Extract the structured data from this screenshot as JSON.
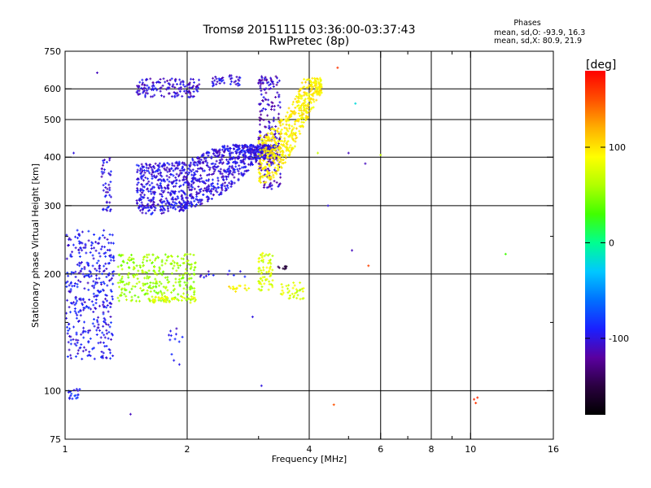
{
  "chart_data": {
    "type": "scatter",
    "title": "Tromsø 20151115 03:36:00-03:37:43",
    "subtitle": "RwPretec (8p)",
    "xlabel": "Frequency [MHz]",
    "ylabel": "Stationary phase Virtual Height [km]",
    "x_scale": "log",
    "y_scale": "log",
    "xlim": [
      1,
      16
    ],
    "ylim": [
      75,
      750
    ],
    "x_ticks": [
      1,
      2,
      4,
      6,
      8,
      10,
      16
    ],
    "x_tick_labels": [
      "1",
      "2",
      "4",
      "6",
      "8",
      "10",
      "16"
    ],
    "x_minor_ticks": [
      3,
      5,
      7,
      9
    ],
    "y_ticks": [
      75,
      100,
      200,
      300,
      400,
      500,
      600,
      750
    ],
    "y_tick_labels": [
      "75",
      "100",
      "200",
      "300",
      "400",
      "500",
      "600",
      "750"
    ],
    "y_minor_ticks": [
      150,
      250
    ],
    "grid": true,
    "stats": {
      "heading": "Phases",
      "line_o": "mean, sd,O: -93.9, 16.3",
      "line_x": "mean, sd,X: 80.9, 21.9"
    },
    "colorbar": {
      "label": "[deg]",
      "range": [
        -180,
        180
      ],
      "ticks": [
        100,
        0,
        -100
      ],
      "tick_labels": [
        "100",
        "0",
        "-100"
      ],
      "colormap": [
        "#000000",
        "#2a0040",
        "#5a00a0",
        "#1a20ff",
        "#0070ff",
        "#00c8ff",
        "#00ff90",
        "#40ff00",
        "#b0ff00",
        "#ffff00",
        "#ffb000",
        "#ff5000",
        "#ff0000"
      ]
    },
    "clusters": [
      {
        "f1": 1.0,
        "f2": 1.32,
        "h1": 120,
        "h2": 260,
        "ph": -95,
        "n": 380,
        "shape": "box"
      },
      {
        "f1": 1.02,
        "f2": 1.09,
        "h1": 95,
        "h2": 103,
        "ph": -90,
        "n": 18,
        "shape": "box"
      },
      {
        "f1": 1.23,
        "f2": 1.3,
        "h1": 290,
        "h2": 400,
        "ph": -100,
        "n": 45,
        "shape": "box"
      },
      {
        "f1": 1.5,
        "f2": 3.3,
        "h1": 285,
        "h2": 430,
        "ph": -100,
        "n": 1100,
        "shape": "o_trace"
      },
      {
        "f1": 1.5,
        "f2": 2.15,
        "h1": 570,
        "h2": 640,
        "ph": -105,
        "n": 140,
        "shape": "box"
      },
      {
        "f1": 2.3,
        "f2": 2.7,
        "h1": 610,
        "h2": 650,
        "ph": -100,
        "n": 40,
        "shape": "box"
      },
      {
        "f1": 3.0,
        "f2": 3.4,
        "h1": 330,
        "h2": 650,
        "ph": -110,
        "n": 220,
        "shape": "box"
      },
      {
        "f1": 3.0,
        "f2": 4.3,
        "h1": 340,
        "h2": 640,
        "ph": 95,
        "n": 520,
        "shape": "x_trace"
      },
      {
        "f1": 1.35,
        "f2": 2.1,
        "h1": 170,
        "h2": 225,
        "ph": 55,
        "n": 300,
        "shape": "box"
      },
      {
        "f1": 1.6,
        "f2": 2.1,
        "h1": 168,
        "h2": 175,
        "ph": 80,
        "n": 40,
        "shape": "box"
      },
      {
        "f1": 2.5,
        "f2": 2.85,
        "h1": 180,
        "h2": 188,
        "ph": 95,
        "n": 16,
        "shape": "box"
      },
      {
        "f1": 3.0,
        "f2": 3.25,
        "h1": 180,
        "h2": 228,
        "ph": 75,
        "n": 70,
        "shape": "box"
      },
      {
        "f1": 3.4,
        "f2": 3.9,
        "h1": 172,
        "h2": 190,
        "ph": 75,
        "n": 35,
        "shape": "box"
      },
      {
        "f1": 1.8,
        "f2": 1.95,
        "h1": 115,
        "h2": 150,
        "ph": -95,
        "n": 12,
        "shape": "box"
      },
      {
        "f1": 2.15,
        "f2": 2.8,
        "h1": 195,
        "h2": 205,
        "ph": -100,
        "n": 12,
        "shape": "box"
      },
      {
        "f1": 3.35,
        "f2": 3.55,
        "h1": 205,
        "h2": 210,
        "ph": -150,
        "n": 8,
        "shape": "box"
      }
    ],
    "points": [
      {
        "f": 1.2,
        "h": 660,
        "ph": -110
      },
      {
        "f": 4.7,
        "h": 680,
        "ph": 160
      },
      {
        "f": 5.2,
        "h": 550,
        "ph": -20
      },
      {
        "f": 5.0,
        "h": 410,
        "ph": -110
      },
      {
        "f": 5.5,
        "h": 385,
        "ph": -110
      },
      {
        "f": 5.1,
        "h": 230,
        "ph": -110
      },
      {
        "f": 4.45,
        "h": 300,
        "ph": -100
      },
      {
        "f": 5.6,
        "h": 210,
        "ph": 155
      },
      {
        "f": 6.0,
        "h": 405,
        "ph": 70
      },
      {
        "f": 12.2,
        "h": 225,
        "ph": 30
      },
      {
        "f": 10.2,
        "h": 95,
        "ph": 165
      },
      {
        "f": 10.4,
        "h": 96,
        "ph": 165
      },
      {
        "f": 10.3,
        "h": 93,
        "ph": 160
      },
      {
        "f": 4.6,
        "h": 92,
        "ph": 150
      },
      {
        "f": 1.45,
        "h": 87,
        "ph": -110
      },
      {
        "f": 3.05,
        "h": 103,
        "ph": -100
      },
      {
        "f": 2.9,
        "h": 155,
        "ph": -100
      },
      {
        "f": 4.2,
        "h": 410,
        "ph": 70
      },
      {
        "f": 1.05,
        "h": 410,
        "ph": -100
      }
    ]
  }
}
